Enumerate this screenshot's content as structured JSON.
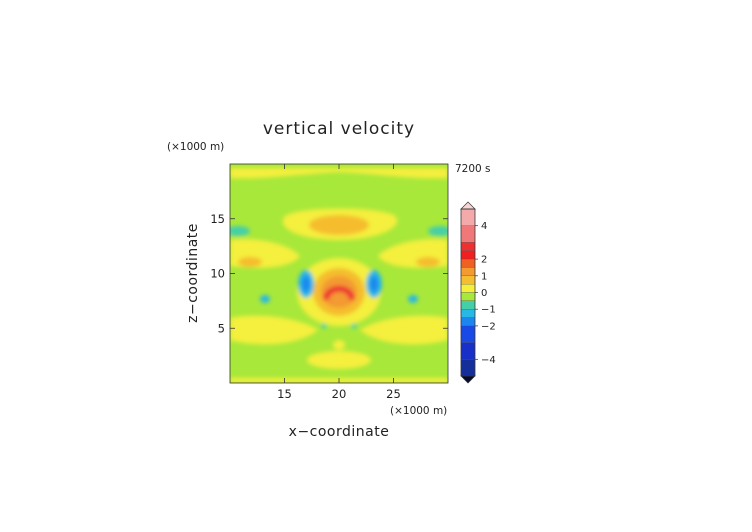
{
  "chart_data": {
    "type": "heatmap",
    "title": "vertical velocity",
    "time_label": "7200 s",
    "xlabel": "x−coordinate",
    "ylabel": "z−coordinate",
    "x_unit": "(×1000 m)",
    "y_unit": "(×1000 m)",
    "xlim": [
      10,
      30
    ],
    "ylim": [
      0,
      20
    ],
    "x_ticks": [
      15,
      20,
      25
    ],
    "y_ticks": [
      5,
      10,
      15
    ],
    "colorbar": {
      "ticks": [
        {
          "value": 4,
          "label": "4"
        },
        {
          "value": 2,
          "label": "2"
        },
        {
          "value": 1,
          "label": "1"
        },
        {
          "value": 0,
          "label": "0"
        },
        {
          "value": -1,
          "label": "−1"
        },
        {
          "value": -2,
          "label": "−2"
        },
        {
          "value": -4,
          "label": "−4"
        }
      ],
      "levels": [
        {
          "min": 4,
          "max": 5,
          "color": "#f4aaaa"
        },
        {
          "min": 3,
          "max": 4,
          "color": "#f07878"
        },
        {
          "min": 2.5,
          "max": 3,
          "color": "#ee3030"
        },
        {
          "min": 2,
          "max": 2.5,
          "color": "#f02020"
        },
        {
          "min": 1.5,
          "max": 2,
          "color": "#f06020"
        },
        {
          "min": 1,
          "max": 1.5,
          "color": "#f39a30"
        },
        {
          "min": 0.5,
          "max": 1,
          "color": "#f5bd2f"
        },
        {
          "min": 0,
          "max": 0.5,
          "color": "#f5ef3c"
        },
        {
          "min": -0.5,
          "max": 0,
          "color": "#a8e83a"
        },
        {
          "min": -1,
          "max": -0.5,
          "color": "#45cfa8"
        },
        {
          "min": -1.5,
          "max": -1,
          "color": "#28b8e6"
        },
        {
          "min": -2,
          "max": -1.5,
          "color": "#1d86ee"
        },
        {
          "min": -3,
          "max": -2,
          "color": "#1a4ae6"
        },
        {
          "min": -4,
          "max": -3,
          "color": "#1930c8"
        },
        {
          "min": -5,
          "max": -4,
          "color": "#142e9a"
        }
      ],
      "over_color": "#f8d4d4",
      "under_color": "#050a30"
    },
    "field_features": [
      {
        "x": 20,
        "z": 8.6,
        "value": 2.2,
        "desc": "central updraft core"
      },
      {
        "x": 17.2,
        "z": 9.5,
        "value": -1.4,
        "desc": "left downdraft"
      },
      {
        "x": 22.8,
        "z": 9.5,
        "value": -1.4,
        "desc": "right downdraft"
      },
      {
        "x": 20,
        "z": 14.6,
        "value": 0.9,
        "desc": "upper updraft band"
      },
      {
        "x": 10.8,
        "z": 14,
        "value": -1.1,
        "desc": "left edge downdraft"
      },
      {
        "x": 29.2,
        "z": 14,
        "value": -1.1,
        "desc": "right edge downdraft"
      }
    ]
  }
}
